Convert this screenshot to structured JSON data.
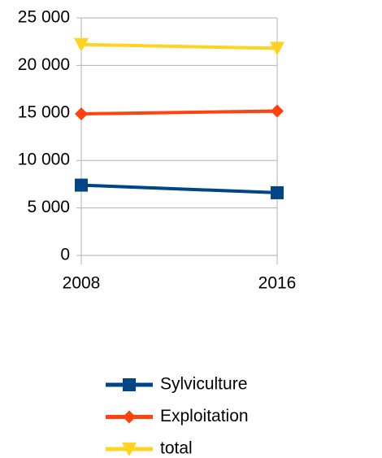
{
  "chart_data": {
    "type": "line",
    "categories": [
      "2008",
      "2016"
    ],
    "series": [
      {
        "name": "Sylviculture",
        "color": "#004586",
        "marker": "square",
        "values": [
          7400,
          6600
        ]
      },
      {
        "name": "Exploitation",
        "color": "#ff420e",
        "marker": "diamond",
        "values": [
          14900,
          15200
        ]
      },
      {
        "name": "total",
        "color": "#ffd320",
        "marker": "triangle-down",
        "values": [
          22200,
          21800
        ]
      }
    ],
    "ylim": [
      0,
      25000
    ],
    "yticks": [
      0,
      {
        "value": 5000,
        "label": "5 000"
      },
      {
        "value": 10000,
        "label": "10 000"
      },
      {
        "value": 15000,
        "label": "15 000"
      },
      {
        "value": 20000,
        "label": "20 000"
      },
      {
        "value": 25000,
        "label": "25 000"
      }
    ],
    "grid": true,
    "legend": "bottom"
  }
}
